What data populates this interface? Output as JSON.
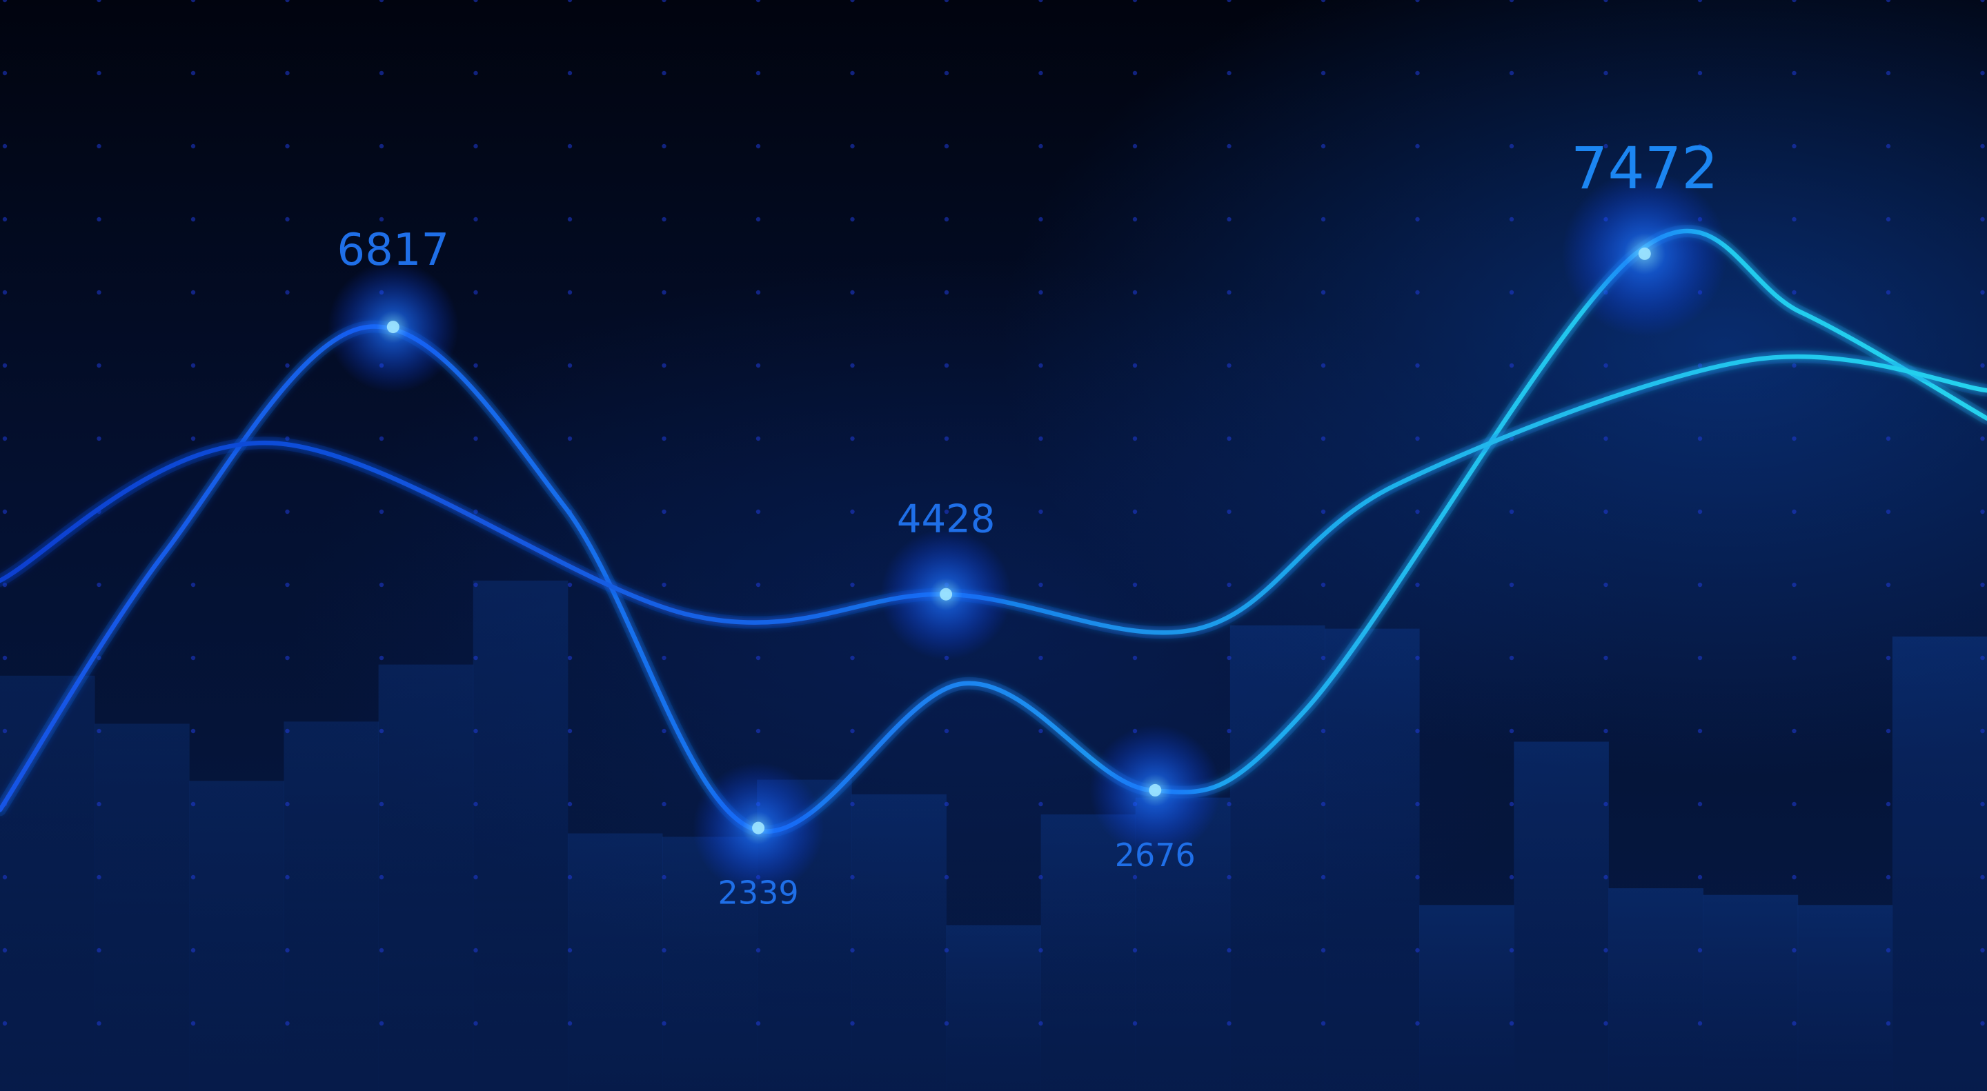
{
  "chart_data": {
    "type": "line",
    "title": "",
    "xlabel": "",
    "ylabel": "",
    "grid": true,
    "ylim": [
      0,
      9000
    ],
    "colors": {
      "background": "#020816",
      "grid_dot": "#1f3bd6",
      "line_dark": "#1454e6",
      "line_mid": "#1a7cf0",
      "line_cyan": "#25d3ee",
      "bar": "#0c2f7a",
      "label": "#1f6fe8"
    },
    "bars": [
      3700,
      3270,
      2760,
      3290,
      3800,
      4550,
      2290,
      2260,
      2770,
      2640,
      1470,
      2460,
      2610,
      4150,
      4120,
      1650,
      3110,
      1800,
      1740,
      1650,
      4050
    ],
    "series": [
      {
        "color": "#1a7cf0",
        "x": [
          0,
          130,
          290,
          446,
          592,
          760,
          908,
          1030,
          1290,
          1420,
          1567
        ],
        "values": [
          2500,
          4800,
          6817,
          5200,
          2339,
          3630,
          2676,
          3400,
          7472,
          6950,
          6000
        ]
      },
      {
        "color": "#1454e6",
        "x": [
          0,
          215,
          545,
          746,
          945,
          1100,
          1380,
          1567
        ],
        "values": [
          4550,
          5780,
          4240,
          4428,
          4120,
          5400,
          6520,
          6250
        ]
      }
    ],
    "labels": [
      {
        "text": "6817",
        "x": 310,
        "value": 6817,
        "size": "large"
      },
      {
        "text": "2339",
        "x": 598,
        "value": 2339,
        "size": "small"
      },
      {
        "text": "4428",
        "x": 746,
        "value": 4428,
        "size": "medium"
      },
      {
        "text": "2676",
        "x": 911,
        "value": 2676,
        "size": "small"
      },
      {
        "text": "7472",
        "x": 1297,
        "value": 7472,
        "size": "xlarge"
      }
    ]
  }
}
